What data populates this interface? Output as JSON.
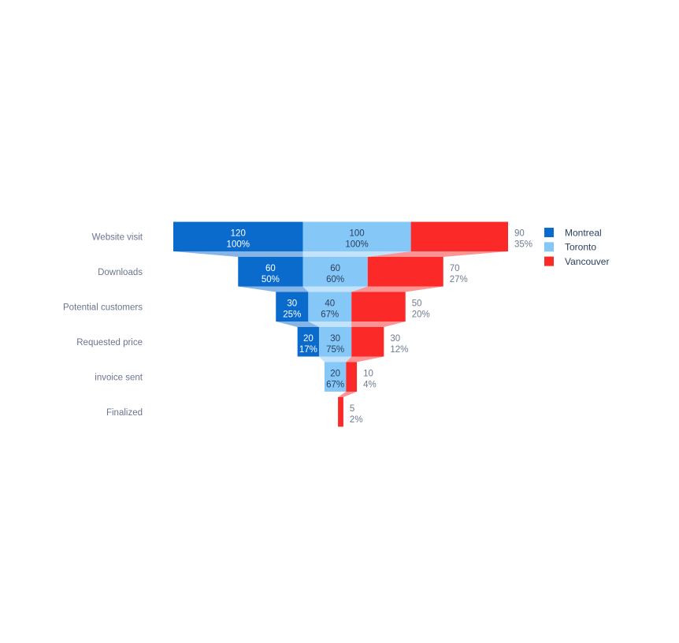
{
  "chart_data": {
    "type": "funnel",
    "title": "",
    "orientation": "horizontal-stacked",
    "background_color": "#ffffff",
    "stages": [
      "Website visit",
      "Downloads",
      "Potential customers",
      "Requested price",
      "invoice sent",
      "Finalized"
    ],
    "stage_label_color": "#6a7590",
    "connector_opacity": 0.5,
    "series": [
      {
        "name": "Montreal",
        "color": "#0a6bcd",
        "text_position": "inside",
        "text_color": "#ffffff",
        "values": [
          120,
          60,
          30,
          20,
          null,
          null
        ],
        "percent_labels": [
          "100%",
          "50%",
          "25%",
          "17%",
          null,
          null
        ]
      },
      {
        "name": "Toronto",
        "color": "#85c8f7",
        "text_position": "inside",
        "text_color": "#2a3f5f",
        "values": [
          100,
          60,
          40,
          30,
          20,
          null
        ],
        "percent_labels": [
          "100%",
          "60%",
          "67%",
          "75%",
          "67%",
          null
        ]
      },
      {
        "name": "Vancouver",
        "color": "#fb2a28",
        "text_position": "outside",
        "text_color": "#6e7b91",
        "values": [
          90,
          70,
          50,
          30,
          10,
          5
        ],
        "percent_labels": [
          "35%",
          "27%",
          "20%",
          "12%",
          "4%",
          "2%"
        ]
      }
    ],
    "legend": {
      "position": "right",
      "text_color": "#2a3f5f",
      "entries": [
        "Montreal",
        "Toronto",
        "Vancouver"
      ]
    }
  }
}
